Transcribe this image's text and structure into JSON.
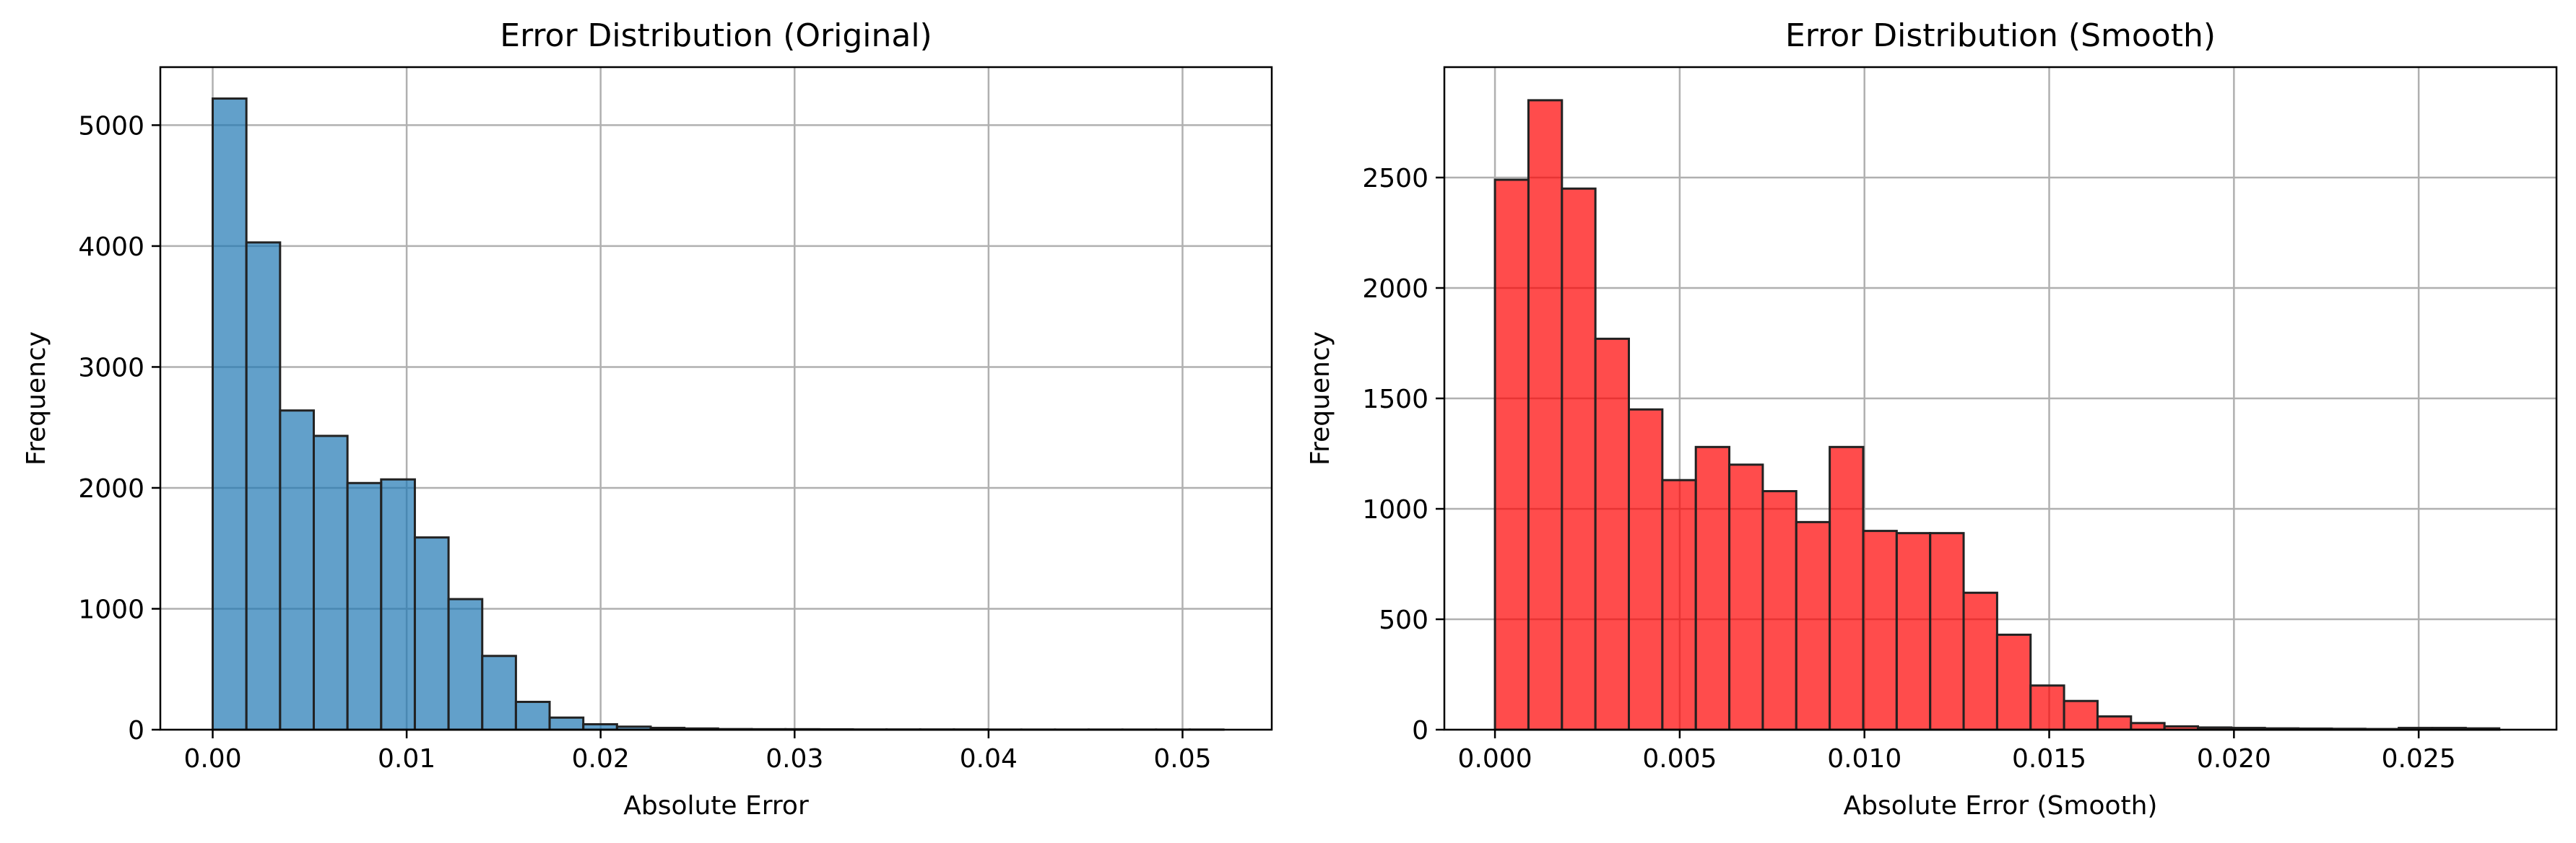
{
  "chart_data": [
    {
      "type": "bar",
      "title": "Error Distribution (Original)",
      "xlabel": "Absolute Error",
      "ylabel": "Frequency",
      "color": "#1f77b4",
      "bar_opacity": 0.7,
      "grid": true,
      "xlim": [
        -0.0027,
        0.0546
      ],
      "ylim": [
        0,
        5480
      ],
      "xticks": [
        0.0,
        0.01,
        0.02,
        0.03,
        0.04,
        0.05
      ],
      "xtick_labels": [
        "0.00",
        "0.01",
        "0.02",
        "0.03",
        "0.04",
        "0.05"
      ],
      "yticks": [
        0,
        1000,
        2000,
        3000,
        4000,
        5000
      ],
      "ytick_labels": [
        "0",
        "1000",
        "2000",
        "3000",
        "4000",
        "5000"
      ],
      "bin_start": 0.0,
      "bin_width": 0.001737,
      "values": [
        5220,
        4030,
        2640,
        2430,
        2040,
        2070,
        1590,
        1080,
        610,
        230,
        100,
        45,
        25,
        15,
        10,
        5,
        4,
        4,
        3,
        2,
        2,
        2,
        2,
        1,
        1,
        1,
        1,
        1,
        1,
        1
      ]
    },
    {
      "type": "bar",
      "title": "Error Distribution (Smooth)",
      "xlabel": "Absolute Error (Smooth)",
      "ylabel": "Frequency",
      "color": "#ff0000",
      "bar_opacity": 0.7,
      "grid": true,
      "xlim": [
        -0.00137,
        0.02873
      ],
      "ylim": [
        0,
        3000
      ],
      "xticks": [
        0.0,
        0.005,
        0.01,
        0.015,
        0.02,
        0.025
      ],
      "xtick_labels": [
        "0.000",
        "0.005",
        "0.010",
        "0.015",
        "0.020",
        "0.025"
      ],
      "yticks": [
        0,
        500,
        1000,
        1500,
        2000,
        2500
      ],
      "ytick_labels": [
        "0",
        "500",
        "1000",
        "1500",
        "2000",
        "2500"
      ],
      "bin_start": 0.0,
      "bin_width": 0.000906,
      "values": [
        2490,
        2850,
        2450,
        1770,
        1450,
        1130,
        1280,
        1200,
        1080,
        940,
        1280,
        900,
        890,
        890,
        620,
        430,
        200,
        130,
        60,
        30,
        15,
        10,
        8,
        6,
        5,
        4,
        3,
        8,
        8,
        6
      ]
    }
  ]
}
